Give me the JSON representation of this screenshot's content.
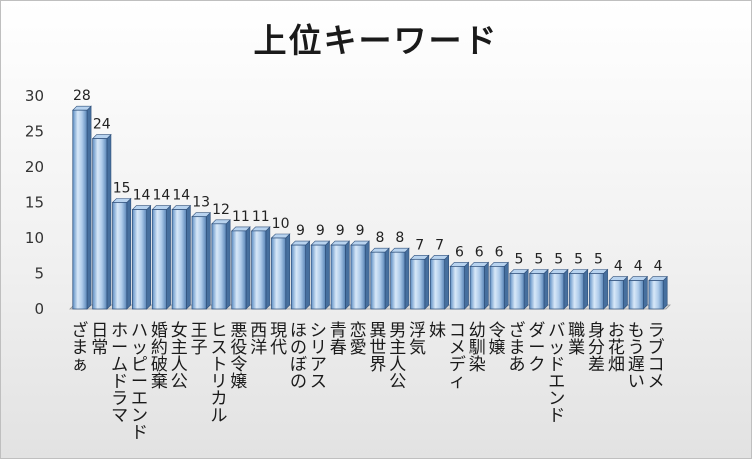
{
  "chart_data": {
    "type": "bar",
    "title": "上位キーワード",
    "xlabel": "",
    "ylabel": "",
    "ylim": [
      0,
      30
    ],
    "yticks": [
      0,
      5,
      10,
      15,
      20,
      25,
      30
    ],
    "grid": false,
    "legend": "none",
    "categories": [
      "ざまぁ",
      "日常",
      "ホームドラマ",
      "ハッピーエンド",
      "婚約破棄",
      "女主人公",
      "王子",
      "ヒストリカル",
      "悪役令嬢",
      "西洋",
      "現代",
      "ほのぼの",
      "シリアス",
      "青春",
      "恋愛",
      "異世界",
      "男主人公",
      "浮気",
      "妹",
      "コメディ",
      "幼馴染",
      "令嬢",
      "ざまあ",
      "ダーク",
      "バッドエンド",
      "職業",
      "身分差",
      "お花畑",
      "もう遅い",
      "ラブコメ"
    ],
    "values": [
      28,
      24,
      15,
      14,
      14,
      14,
      13,
      12,
      11,
      11,
      10,
      9,
      9,
      9,
      9,
      8,
      8,
      7,
      7,
      6,
      6,
      6,
      5,
      5,
      5,
      5,
      5,
      4,
      4,
      4
    ],
    "bar_color": "#9dc3e6",
    "bar_edge_color": "#2e4f7a"
  }
}
